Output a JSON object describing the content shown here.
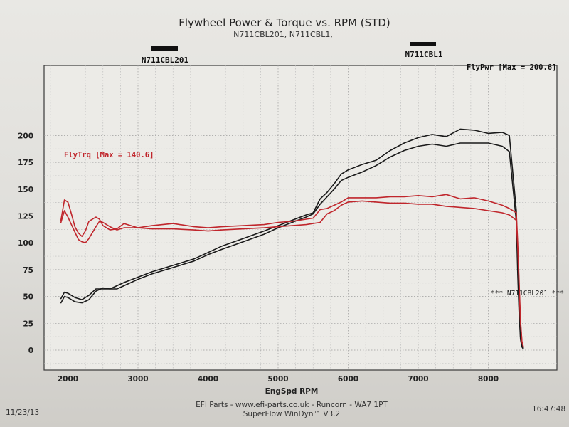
{
  "chart_data": {
    "type": "line",
    "title": "Flywheel Power & Torque vs. RPM (STD)",
    "subtitle": "N711CBL201, N711CBL1,",
    "xlabel": "EngSpd RPM",
    "xlim": [
      1750,
      8650
    ],
    "ylim": [
      -10,
      210
    ],
    "x_ticks": [
      "2000",
      "3000",
      "4000",
      "5000",
      "6000",
      "7000",
      "8000"
    ],
    "y_ticks": [
      "0",
      "25",
      "50",
      "75",
      "100",
      "125",
      "150",
      "175",
      "200"
    ],
    "grid": true,
    "colors": {
      "power": "#1a1a1a",
      "torque": "#c0262c"
    },
    "run_markers": [
      "N711CBL201",
      "N711CBL1"
    ],
    "series_labels": {
      "power": "FlyPwr [Max = 200.6]",
      "torque": "FlyTrq [Max = 140.6]",
      "run_note": "*** N711CBL201 ***"
    },
    "series": [
      {
        "name": "FlyPwr",
        "kind": "power",
        "color": "#1a1a1a",
        "x": [
          1900,
          1950,
          2000,
          2100,
          2200,
          2300,
          2400,
          2500,
          2600,
          2700,
          2800,
          3000,
          3200,
          3500,
          3800,
          4000,
          4200,
          4500,
          4800,
          5000,
          5200,
          5400,
          5500,
          5600,
          5700,
          5800,
          5900,
          6000,
          6200,
          6400,
          6600,
          6800,
          7000,
          7200,
          7400,
          7600,
          7800,
          8000,
          8200,
          8300,
          8400,
          8420,
          8440,
          8460,
          8480,
          8500
        ],
        "y": [
          44,
          50,
          49,
          45,
          44,
          47,
          55,
          58,
          57,
          57,
          60,
          66,
          71,
          77,
          83,
          89,
          94,
          101,
          108,
          114,
          119,
          124,
          127,
          136,
          143,
          150,
          158,
          161,
          166,
          172,
          180,
          186,
          190,
          192,
          190,
          193,
          193,
          193,
          190,
          185,
          120,
          70,
          35,
          10,
          3,
          1
        ]
      },
      {
        "name": "FlyPwr",
        "kind": "power",
        "color": "#1a1a1a",
        "x": [
          1900,
          1950,
          2000,
          2100,
          2200,
          2300,
          2400,
          2500,
          2600,
          2700,
          2800,
          3000,
          3200,
          3500,
          3800,
          4000,
          4200,
          4500,
          4800,
          5000,
          5200,
          5400,
          5500,
          5600,
          5700,
          5800,
          5900,
          6000,
          6200,
          6400,
          6600,
          6800,
          7000,
          7200,
          7400,
          7600,
          7800,
          8000,
          8200,
          8300,
          8400,
          8420,
          8440,
          8460,
          8480,
          8500
        ],
        "y": [
          48,
          54,
          53,
          49,
          47,
          51,
          57,
          57,
          57,
          60,
          63,
          68,
          73,
          79,
          85,
          91,
          97,
          104,
          111,
          116,
          121,
          126,
          128,
          141,
          147,
          155,
          164,
          168,
          173,
          177,
          186,
          193,
          198,
          201,
          199,
          206,
          205,
          202,
          203,
          200,
          130,
          80,
          40,
          12,
          4,
          2
        ]
      },
      {
        "name": "FlyTrq",
        "kind": "torque",
        "color": "#c0262c",
        "x": [
          1900,
          1950,
          2000,
          2050,
          2100,
          2150,
          2200,
          2250,
          2300,
          2400,
          2450,
          2500,
          2600,
          2700,
          2800,
          3000,
          3200,
          3500,
          3800,
          4000,
          4200,
          4500,
          4800,
          5000,
          5200,
          5400,
          5500,
          5600,
          5700,
          5800,
          5900,
          6000,
          6200,
          6400,
          6600,
          6800,
          7000,
          7200,
          7400,
          7600,
          7800,
          8000,
          8200,
          8300,
          8400,
          8420,
          8440,
          8460,
          8480,
          8500
        ],
        "y": [
          119,
          130,
          124,
          117,
          110,
          103,
          101,
          100,
          104,
          115,
          120,
          119,
          115,
          112,
          114,
          114,
          113,
          113,
          112,
          111,
          112,
          113,
          114,
          115,
          116,
          117,
          118,
          119,
          127,
          130,
          135,
          138,
          139,
          138,
          137,
          137,
          136,
          136,
          134,
          133,
          132,
          130,
          128,
          126,
          121,
          95,
          60,
          25,
          8,
          3
        ]
      },
      {
        "name": "FlyTrq",
        "kind": "torque",
        "color": "#c0262c",
        "x": [
          1900,
          1950,
          2000,
          2050,
          2100,
          2150,
          2200,
          2250,
          2300,
          2400,
          2450,
          2500,
          2600,
          2700,
          2800,
          3000,
          3200,
          3500,
          3800,
          4000,
          4200,
          4500,
          4800,
          5000,
          5200,
          5400,
          5500,
          5600,
          5700,
          5800,
          5900,
          6000,
          6200,
          6400,
          6600,
          6800,
          7000,
          7200,
          7400,
          7600,
          7800,
          8000,
          8200,
          8300,
          8400,
          8420,
          8440,
          8460,
          8480,
          8500
        ],
        "y": [
          121,
          140,
          138,
          127,
          115,
          109,
          106,
          111,
          120,
          124,
          122,
          116,
          112,
          113,
          118,
          114,
          116,
          118,
          115,
          114,
          115,
          116,
          117,
          119,
          120,
          122,
          123,
          131,
          132,
          135,
          138,
          142,
          142,
          142,
          143,
          143,
          144,
          143,
          145,
          141,
          142,
          139,
          135,
          132,
          128,
          100,
          65,
          28,
          8,
          3
        ]
      }
    ]
  },
  "footer": {
    "date": "11/23/13",
    "line1": "EFI Parts - www.efi-parts.co.uk - Runcorn - WA7 1PT",
    "line2": "SuperFlow WinDyn™ V3.2",
    "time": "16:47:48"
  }
}
